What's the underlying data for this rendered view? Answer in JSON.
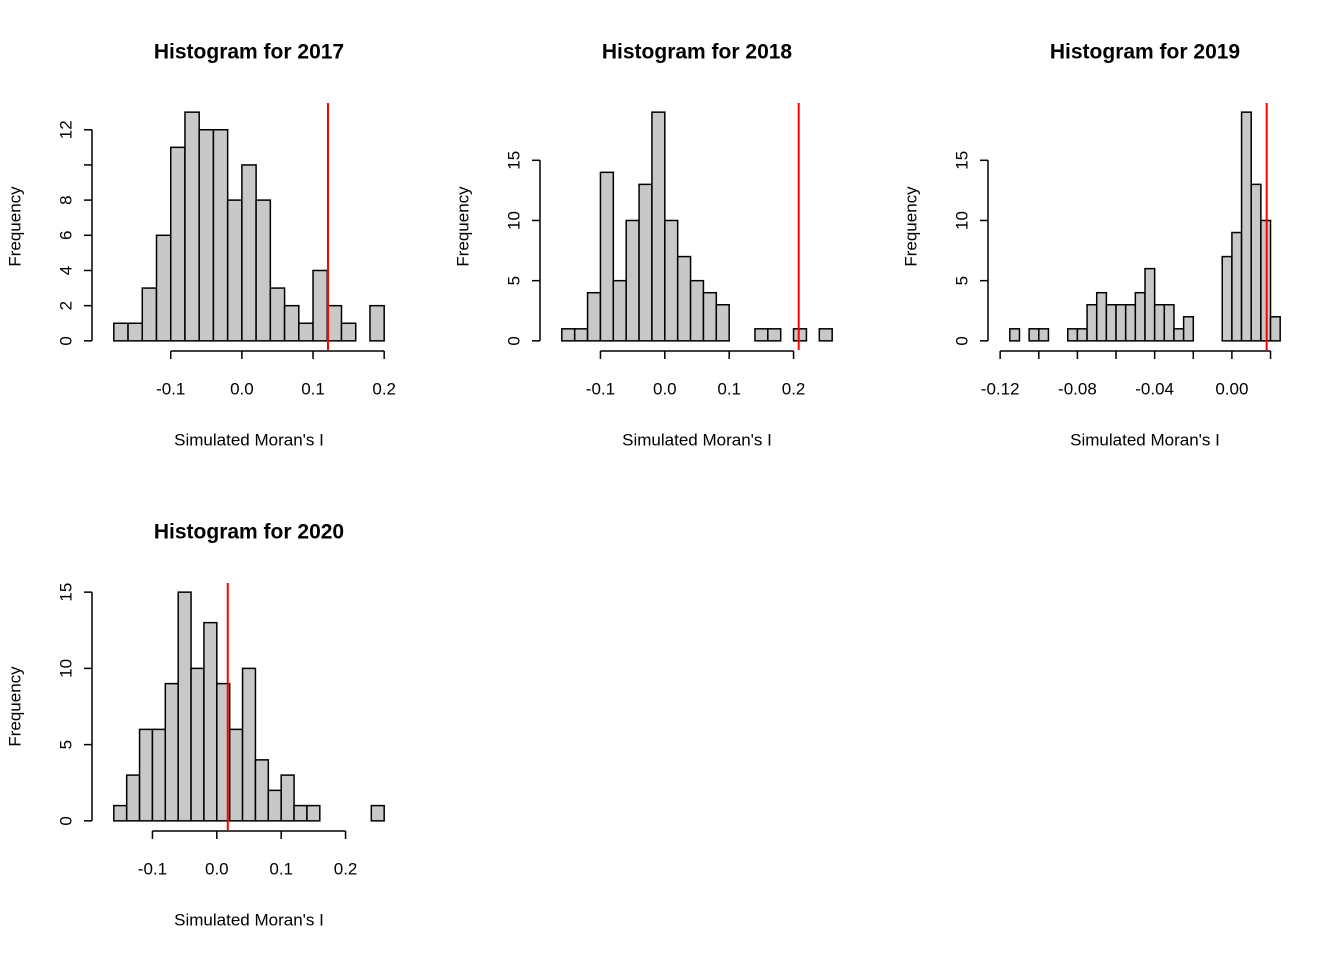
{
  "chart_data": [
    {
      "type": "histogram",
      "title": "Histogram for 2017",
      "x_label": "Simulated Moran's I",
      "y_label": "Frequency",
      "bins": [
        -0.18,
        -0.16,
        -0.14,
        -0.12,
        -0.1,
        -0.08,
        -0.06,
        -0.04,
        -0.02,
        0.0,
        0.02,
        0.04,
        0.06,
        0.08,
        0.1,
        0.12,
        0.14,
        0.16,
        0.18,
        0.2
      ],
      "counts": [
        1,
        1,
        3,
        6,
        11,
        13,
        12,
        12,
        8,
        10,
        8,
        3,
        2,
        1,
        4,
        2,
        1,
        0,
        2
      ],
      "color": "#c8c8c8",
      "xlim": [
        -0.18,
        0.2
      ],
      "ylim": [
        0,
        13
      ],
      "xticks": [
        {
          "value": -0.1,
          "label": "-0.1"
        },
        {
          "value": 0,
          "label": "0.0"
        },
        0.1,
        0.2
      ],
      "yticks": [
        0,
        2,
        4,
        6,
        8,
        12
      ],
      "yticks_minor": [
        10
      ],
      "vline": {
        "value": 0.121,
        "color": "#ff0000"
      }
    },
    {
      "type": "histogram",
      "title": "Histogram for 2018",
      "x_label": "Simulated Moran's I",
      "y_label": "Frequency",
      "bins": [
        -0.16,
        -0.14,
        -0.12,
        -0.1,
        -0.08,
        -0.06,
        -0.04,
        -0.02,
        0.0,
        0.02,
        0.04,
        0.06,
        0.08,
        0.1,
        0.12,
        0.14,
        0.16,
        0.18,
        0.2,
        0.22,
        0.24,
        0.26
      ],
      "counts": [
        1,
        1,
        4,
        14,
        5,
        10,
        13,
        19,
        10,
        7,
        5,
        4,
        3,
        0,
        0,
        1,
        1,
        0,
        1,
        0,
        1
      ],
      "color": "#c8c8c8",
      "xlim": [
        -0.16,
        0.26
      ],
      "ylim": [
        0,
        19
      ],
      "xticks": [
        {
          "value": -0.1,
          "label": "-0.1"
        },
        {
          "value": 0,
          "label": "0.0"
        },
        0.1,
        0.2
      ],
      "yticks": [
        0,
        5,
        10,
        15
      ],
      "vline": {
        "value": 0.208,
        "color": "#ff0000"
      }
    },
    {
      "type": "histogram",
      "title": "Histogram for 2019",
      "x_label": "Simulated Moran's I",
      "y_label": "Frequency",
      "bins": [
        -0.115,
        -0.11,
        -0.105,
        -0.1,
        -0.095,
        -0.09,
        -0.085,
        -0.08,
        -0.075,
        -0.07,
        -0.065,
        -0.06,
        -0.055,
        -0.05,
        -0.045,
        -0.04,
        -0.035,
        -0.03,
        -0.025,
        -0.02,
        -0.015,
        -0.01,
        -0.005,
        0.0,
        0.005,
        0.01,
        0.015,
        0.02,
        0.025
      ],
      "counts": [
        1,
        0,
        1,
        1,
        0,
        0,
        1,
        1,
        3,
        4,
        3,
        3,
        3,
        4,
        6,
        3,
        3,
        1,
        2,
        0,
        0,
        0,
        7,
        9,
        19,
        13,
        10,
        2
      ],
      "color": "#c8c8c8",
      "xlim": [
        -0.115,
        0.025
      ],
      "ylim": [
        0,
        19
      ],
      "xticks": [
        -0.12,
        -0.08,
        -0.04,
        {
          "value": 0,
          "label": "0.00"
        }
      ],
      "xticks_minor": [
        -0.1,
        -0.06,
        -0.02,
        0.02
      ],
      "yticks": [
        0,
        5,
        10,
        15
      ],
      "vline": {
        "value": 0.018,
        "color": "#ff0000"
      }
    },
    {
      "type": "histogram",
      "title": "Histogram for 2020",
      "x_label": "Simulated Moran's I",
      "y_label": "Frequency",
      "bins": [
        -0.16,
        -0.14,
        -0.12,
        -0.1,
        -0.08,
        -0.06,
        -0.04,
        -0.02,
        0.0,
        0.02,
        0.04,
        0.06,
        0.08,
        0.1,
        0.12,
        0.14,
        0.16,
        0.18,
        0.2,
        0.22,
        0.24,
        0.26
      ],
      "counts": [
        1,
        3,
        6,
        6,
        9,
        15,
        10,
        13,
        9,
        6,
        10,
        4,
        2,
        3,
        1,
        1,
        0,
        0,
        0,
        0,
        1
      ],
      "color": "#c8c8c8",
      "xlim": [
        -0.16,
        0.26
      ],
      "ylim": [
        0,
        15
      ],
      "xticks": [
        {
          "value": -0.1,
          "label": "-0.1"
        },
        {
          "value": 0,
          "label": "0.0"
        },
        0.1,
        0.2
      ],
      "yticks": [
        0,
        5,
        10,
        15
      ],
      "vline": {
        "value": 0.017,
        "color": "#ff0000"
      }
    }
  ]
}
